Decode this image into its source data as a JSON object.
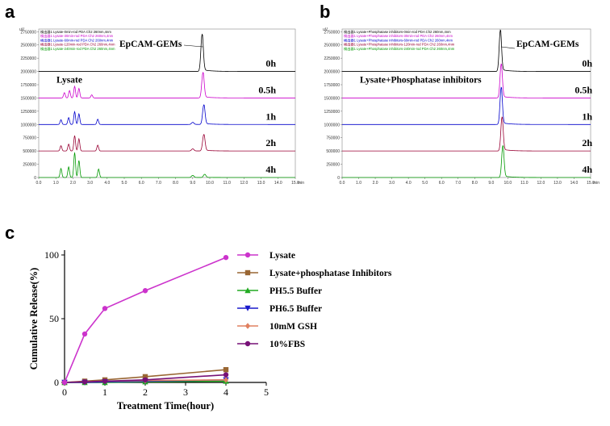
{
  "panels": {
    "a": "a",
    "b": "b",
    "c": "c"
  },
  "chart_data": [
    {
      "type": "line",
      "panel": "a",
      "title": "",
      "y_unit": "uV",
      "y_ticks": [
        "2750000",
        "2500000",
        "2250000",
        "2000000",
        "1750000",
        "1500000",
        "1250000",
        "1000000",
        "750000",
        "500000",
        "250000",
        "0"
      ],
      "x_ticks": [
        "0.0",
        "1.0",
        "2.0",
        "3.0",
        "4.0",
        "5.0",
        "6.0",
        "7.0",
        "8.0",
        "9.0",
        "10.0",
        "11.0",
        "12.0",
        "13.0",
        "14.0",
        "15.0"
      ],
      "x_unit": "min",
      "xlim": [
        0,
        15
      ],
      "legend": [
        {
          "text": "検出器1 Lysate-0min-rod PDA Ch2 260nm,4nm",
          "color": "#000000"
        },
        {
          "text": "検出器1 Lysate-30min-rod PDA Ch2 260nm,4nm",
          "color": "#cc00cc"
        },
        {
          "text": "検出器1 Lysate-60min-rod PDA Ch2 260nm,4nm",
          "color": "#0000cc"
        },
        {
          "text": "検出器1 Lysate-120min-rod PDA Ch2 260nm,4nm",
          "color": "#990033"
        },
        {
          "text": "検出器1 Lysate-240min-rod PDA Ch2 260nm,4nm",
          "color": "#009900"
        }
      ],
      "annotations": {
        "peak": "EpCAM-GEMs",
        "condition": "Lysate"
      },
      "series": [
        {
          "name": "0h",
          "color": "#000000",
          "baseline": 2000000,
          "peaks": [
            [
              9.55,
              700000
            ]
          ]
        },
        {
          "name": "0.5h",
          "color": "#cc00cc",
          "baseline": 1500000,
          "peaks": [
            [
              1.5,
              100000
            ],
            [
              1.8,
              140000
            ],
            [
              2.1,
              220000
            ],
            [
              2.35,
              180000
            ],
            [
              3.1,
              60000
            ],
            [
              9.6,
              480000
            ]
          ]
        },
        {
          "name": "1h",
          "color": "#0000cc",
          "baseline": 1000000,
          "peaks": [
            [
              1.3,
              90000
            ],
            [
              1.75,
              130000
            ],
            [
              2.1,
              240000
            ],
            [
              2.35,
              200000
            ],
            [
              3.45,
              100000
            ],
            [
              9.0,
              40000
            ],
            [
              9.65,
              370000
            ]
          ]
        },
        {
          "name": "2h",
          "color": "#990033",
          "baseline": 500000,
          "peaks": [
            [
              1.3,
              100000
            ],
            [
              1.75,
              130000
            ],
            [
              2.1,
              290000
            ],
            [
              2.35,
              230000
            ],
            [
              3.45,
              110000
            ],
            [
              9.0,
              40000
            ],
            [
              9.65,
              310000
            ]
          ]
        },
        {
          "name": "4h",
          "color": "#009900",
          "baseline": 0,
          "peaks": [
            [
              1.3,
              170000
            ],
            [
              1.75,
              200000
            ],
            [
              2.1,
              470000
            ],
            [
              2.35,
              320000
            ],
            [
              3.5,
              160000
            ],
            [
              9.0,
              40000
            ],
            [
              9.7,
              60000
            ]
          ]
        }
      ]
    },
    {
      "type": "line",
      "panel": "b",
      "title": "",
      "y_unit": "uV",
      "y_ticks": [
        "2750000",
        "2500000",
        "2250000",
        "2000000",
        "1750000",
        "1500000",
        "1250000",
        "1000000",
        "750000",
        "500000",
        "250000",
        "0"
      ],
      "x_ticks": [
        "0.0",
        "1.0",
        "2.0",
        "3.0",
        "4.0",
        "5.0",
        "6.0",
        "7.0",
        "8.0",
        "9.0",
        "10.0",
        "11.0",
        "12.0",
        "13.0",
        "14.0",
        "15.0"
      ],
      "x_unit": "min",
      "xlim": [
        0,
        15
      ],
      "legend": [
        {
          "text": "検出器1 Lysate+Phosphatase inhibitors-0min-rod PDA Ch2 260nm,4nm",
          "color": "#000000"
        },
        {
          "text": "検出器1 Lysate+Phosphatase inhibitors-30min-rod PDA Ch2 260nm,4nm",
          "color": "#cc00cc"
        },
        {
          "text": "検出器1 Lysate+Phosphatase inhibitors-60min-rod PDA Ch2 260nm,4nm",
          "color": "#0000cc"
        },
        {
          "text": "検出器1 Lysate+Phosphatase inhibitors-120min-rod PDA Ch2 260nm,4nm",
          "color": "#990033"
        },
        {
          "text": "検出器1 Lysate+Phosphatase inhibitors-240min-rod PDA Ch2 260nm,4nm",
          "color": "#009900"
        }
      ],
      "annotations": {
        "peak": "EpCAM-GEMs",
        "condition": "Lysate+Phosphatase inhibitors"
      },
      "series": [
        {
          "name": "0h",
          "color": "#000000",
          "baseline": 2000000,
          "peaks": [
            [
              9.55,
              780000
            ]
          ]
        },
        {
          "name": "0.5h",
          "color": "#cc00cc",
          "baseline": 1500000,
          "peaks": [
            [
              9.6,
              640000
            ]
          ]
        },
        {
          "name": "1h",
          "color": "#0000cc",
          "baseline": 1000000,
          "peaks": [
            [
              9.6,
              700000
            ]
          ]
        },
        {
          "name": "2h",
          "color": "#990033",
          "baseline": 500000,
          "peaks": [
            [
              9.65,
              640000
            ]
          ]
        },
        {
          "name": "4h",
          "color": "#009900",
          "baseline": 0,
          "peaks": [
            [
              9.7,
              600000
            ]
          ]
        }
      ]
    },
    {
      "type": "line",
      "panel": "c",
      "title": "",
      "xlabel": "Treatment Time(hour)",
      "ylabel": "Cumulative Release(%)",
      "xlim": [
        0,
        5
      ],
      "ylim": [
        0,
        100
      ],
      "x_ticks": [
        "0",
        "1",
        "2",
        "3",
        "4",
        "5"
      ],
      "y_ticks": [
        "0",
        "50",
        "100"
      ],
      "x": [
        0,
        0.5,
        1,
        2,
        4
      ],
      "legend_position": "right",
      "series": [
        {
          "name": "Lysate",
          "color": "#cc33cc",
          "marker": "circle",
          "values": [
            0,
            38,
            58,
            72,
            98
          ]
        },
        {
          "name": "Lysate+phosphatase Inhibitors",
          "color": "#996633",
          "marker": "square",
          "values": [
            0,
            1,
            2,
            4.5,
            10
          ]
        },
        {
          "name": "PH5.5 Buffer",
          "color": "#22aa22",
          "marker": "triangle-up",
          "values": [
            0,
            0,
            0,
            0.5,
            1
          ]
        },
        {
          "name": "PH6.5 Buffer",
          "color": "#1a1acc",
          "marker": "triangle-down",
          "values": [
            0,
            0,
            0.5,
            1,
            2
          ]
        },
        {
          "name": "10mM GSH",
          "color": "#e08060",
          "marker": "diamond",
          "values": [
            0,
            0.5,
            1,
            1.5,
            2
          ]
        },
        {
          "name": "10%FBS",
          "color": "#771177",
          "marker": "circle",
          "values": [
            0,
            0.5,
            1,
            2,
            6
          ]
        }
      ]
    }
  ]
}
